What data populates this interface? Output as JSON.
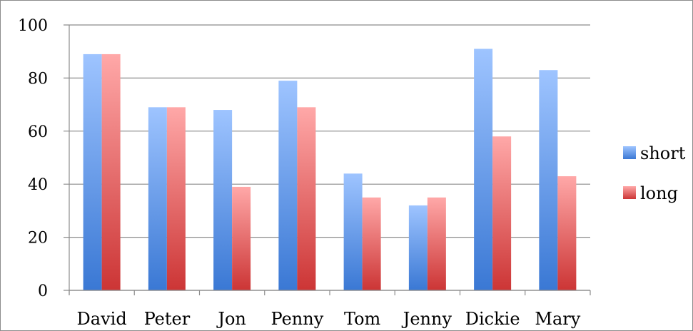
{
  "chart_data": {
    "type": "bar",
    "categories": [
      "David",
      "Peter",
      "Jon",
      "Penny",
      "Tom",
      "Jenny",
      "Dickie",
      "Mary"
    ],
    "series": [
      {
        "name": "short",
        "values": [
          89,
          69,
          68,
          79,
          44,
          32,
          91,
          83
        ],
        "color_top": "#9ec4ff",
        "color_bottom": "#3a78d4"
      },
      {
        "name": "long",
        "values": [
          89,
          69,
          39,
          69,
          35,
          35,
          58,
          43
        ],
        "color_top": "#ffa8a8",
        "color_bottom": "#cc3535"
      }
    ],
    "yticks": [
      "0",
      "20",
      "40",
      "60",
      "80",
      "100"
    ],
    "ylim": [
      0,
      100
    ],
    "grid": true,
    "legend_position": "right",
    "xlabel": "",
    "ylabel": "",
    "title": ""
  }
}
